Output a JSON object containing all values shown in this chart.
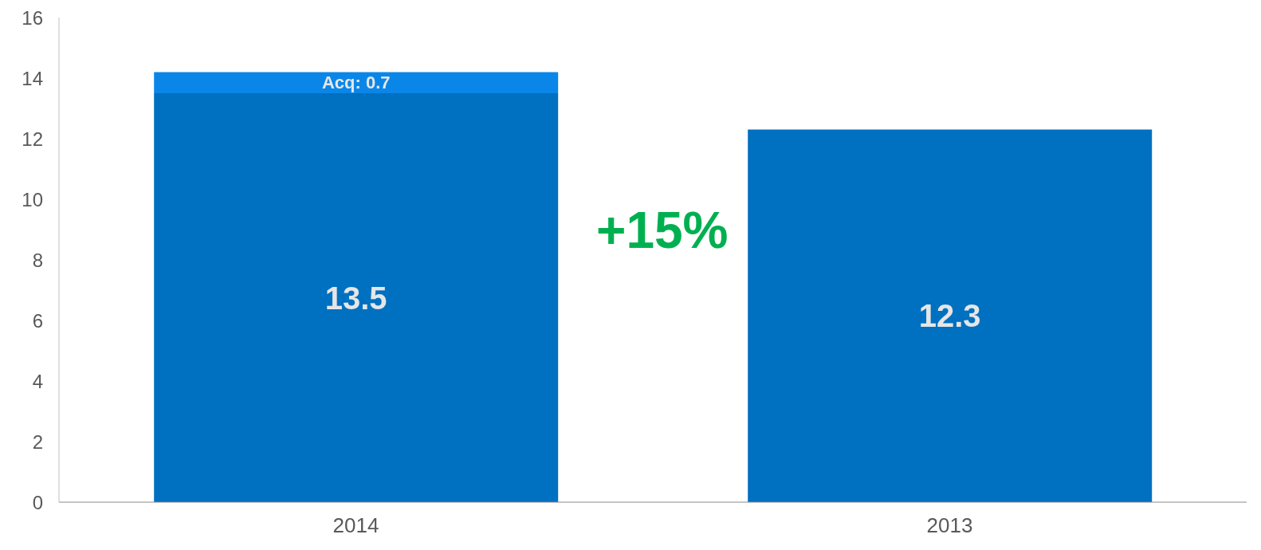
{
  "chart_data": {
    "type": "bar",
    "stacked": true,
    "categories": [
      "2014",
      "2013"
    ],
    "series": [
      {
        "color": "#0070c0",
        "values": [
          13.5,
          12.3
        ],
        "value_labels": [
          "13.5",
          "12.3"
        ]
      },
      {
        "color": "#0a86e8",
        "values": [
          0.7,
          null
        ],
        "value_labels": [
          "Acq: 0.7",
          null
        ]
      }
    ],
    "ylim": [
      0,
      16
    ],
    "yticks": [
      0,
      2,
      4,
      6,
      8,
      10,
      12,
      14,
      16
    ],
    "annotations": [
      "+15%"
    ]
  }
}
